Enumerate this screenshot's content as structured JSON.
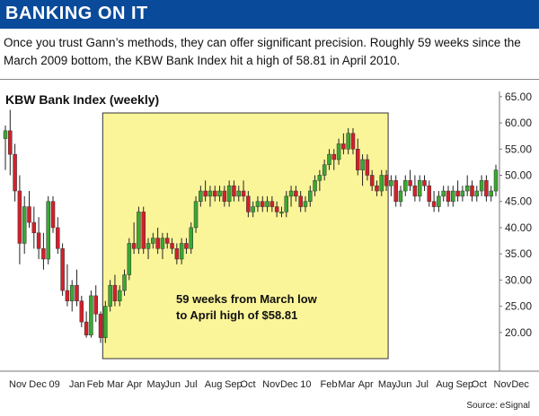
{
  "banner": {
    "title": "BANKING ON IT"
  },
  "intro": "Once you trust Gann’s methods, they can offer significant precision. Roughly 59 weeks since the March 2009 bottom, the KBW Bank Index hit a high of 58.81 in April 2010.",
  "source": "Source: eSignal",
  "colors": {
    "banner": "#0a4a9a",
    "up": "#3aa832",
    "down": "#d2202a",
    "highlight": "#fbf59a"
  },
  "chart_data": {
    "type": "candlestick",
    "title": "KBW Bank Index (weekly)",
    "ylim": [
      15,
      66
    ],
    "y_ticks": [
      "65.00",
      "60.00",
      "55.00",
      "50.00",
      "45.00",
      "40.00",
      "35.00",
      "30.00",
      "25.00",
      "20.00"
    ],
    "y_tick_values": [
      65,
      60,
      55,
      50,
      45,
      40,
      35,
      30,
      25,
      20
    ],
    "x_labels": [
      "Nov",
      "Dec",
      "09",
      "Jan",
      "Feb",
      "Mar",
      "Apr",
      "May",
      "Jun",
      "Jul",
      "Aug",
      "Sep",
      "Oct",
      "Nov",
      "Dec",
      "10",
      "Feb",
      "Mar",
      "Apr",
      "May",
      "Jun",
      "Jul",
      "Aug",
      "Sep",
      "Oct",
      "Nov",
      "Dec"
    ],
    "x_label_positions": [
      0,
      4.5,
      9,
      13.5,
      17.5,
      22,
      26.5,
      31,
      35,
      39.5,
      44,
      48.5,
      52,
      57,
      61,
      65.5,
      70,
      74,
      78.5,
      83,
      87,
      91.5,
      96,
      100.5,
      104,
      109,
      113
    ],
    "annotation": "59 weeks from March low\nto April high of $58.81",
    "highlight_weeks": [
      22,
      81
    ],
    "candles": [
      [
        1,
        57,
        59.5,
        51,
        58.5
      ],
      [
        2,
        58.5,
        62.5,
        50,
        54
      ],
      [
        3,
        54,
        56,
        45,
        47
      ],
      [
        4,
        47,
        50,
        33,
        37
      ],
      [
        5,
        37,
        46,
        35,
        44
      ],
      [
        6,
        44,
        47,
        40,
        41
      ],
      [
        7,
        41,
        44,
        36,
        39
      ],
      [
        8,
        39,
        42,
        34,
        36
      ],
      [
        9,
        36,
        39,
        32,
        34
      ],
      [
        10,
        34,
        46,
        33,
        45
      ],
      [
        11,
        45,
        46,
        39,
        40
      ],
      [
        12,
        40,
        42,
        35,
        36
      ],
      [
        13,
        36,
        37,
        27,
        28
      ],
      [
        14,
        28,
        33,
        25,
        26
      ],
      [
        15,
        26,
        30,
        24,
        29
      ],
      [
        16,
        29,
        32,
        25,
        26
      ],
      [
        17,
        26,
        27,
        21,
        22
      ],
      [
        18,
        22,
        24,
        19,
        19.5
      ],
      [
        19,
        19.5,
        28,
        19,
        27
      ],
      [
        20,
        27,
        29,
        22,
        23.5
      ],
      [
        21,
        23.5,
        24,
        18,
        19
      ],
      [
        22,
        19,
        26,
        18,
        25
      ],
      [
        23,
        25,
        30,
        24,
        29
      ],
      [
        24,
        29,
        31,
        25,
        26
      ],
      [
        25,
        26,
        29,
        25,
        28
      ],
      [
        26,
        28,
        32,
        27,
        31
      ],
      [
        27,
        31,
        38,
        30,
        37
      ],
      [
        28,
        37,
        41,
        35,
        36
      ],
      [
        29,
        36,
        44,
        35,
        43
      ],
      [
        30,
        43,
        44,
        35,
        36
      ],
      [
        31,
        36,
        38,
        34,
        37
      ],
      [
        32,
        37,
        39,
        36,
        38
      ],
      [
        33,
        38,
        40,
        35,
        36
      ],
      [
        34,
        36,
        39,
        34,
        38
      ],
      [
        35,
        38,
        39,
        36,
        37
      ],
      [
        36,
        37,
        38,
        35,
        36
      ],
      [
        37,
        36,
        37,
        33,
        34
      ],
      [
        38,
        34,
        38,
        33,
        37
      ],
      [
        39,
        37,
        38,
        35,
        36
      ],
      [
        40,
        36,
        41,
        35,
        40
      ],
      [
        41,
        40,
        46,
        39,
        45
      ],
      [
        42,
        45,
        48,
        44,
        47
      ],
      [
        43,
        47,
        49,
        45,
        46
      ],
      [
        44,
        46,
        48,
        44,
        47
      ],
      [
        45,
        47,
        48,
        45,
        46
      ],
      [
        46,
        46,
        48,
        45,
        47
      ],
      [
        47,
        47,
        48,
        44,
        45
      ],
      [
        48,
        45,
        49,
        44,
        48
      ],
      [
        49,
        48,
        49,
        45,
        46
      ],
      [
        50,
        46,
        48,
        45,
        47
      ],
      [
        51,
        47,
        49,
        45,
        46
      ],
      [
        52,
        46,
        47,
        42,
        43
      ],
      [
        53,
        43,
        45,
        42,
        44
      ],
      [
        54,
        44,
        46,
        43,
        45
      ],
      [
        55,
        45,
        46,
        43,
        44
      ],
      [
        56,
        44,
        46,
        43,
        45
      ],
      [
        57,
        45,
        46,
        43,
        44
      ],
      [
        58,
        44,
        45,
        42,
        43
      ],
      [
        59,
        43,
        44,
        42,
        43
      ],
      [
        60,
        43,
        47,
        42,
        46
      ],
      [
        61,
        46,
        48,
        44,
        47
      ],
      [
        62,
        47,
        48,
        45,
        46
      ],
      [
        63,
        46,
        47,
        43,
        44
      ],
      [
        64,
        44,
        46,
        43,
        45
      ],
      [
        65,
        45,
        48,
        44,
        47
      ],
      [
        66,
        47,
        50,
        46,
        49
      ],
      [
        67,
        49,
        51,
        47,
        50
      ],
      [
        68,
        50,
        53,
        49,
        52
      ],
      [
        69,
        52,
        55,
        51,
        54
      ],
      [
        70,
        54,
        55,
        51,
        53
      ],
      [
        71,
        53,
        57,
        52,
        56
      ],
      [
        72,
        56,
        58,
        54,
        55
      ],
      [
        73,
        55,
        59,
        54,
        58
      ],
      [
        74,
        58,
        59,
        54,
        55
      ],
      [
        75,
        55,
        57,
        50,
        51
      ],
      [
        76,
        51,
        54,
        48,
        53
      ],
      [
        77,
        53,
        54,
        49,
        50
      ],
      [
        78,
        50,
        51,
        47,
        48
      ],
      [
        79,
        48,
        49,
        46,
        47
      ],
      [
        80,
        47,
        51,
        46,
        50
      ],
      [
        81,
        50,
        51,
        47,
        48
      ],
      [
        82,
        48,
        50,
        46,
        49
      ],
      [
        83,
        49,
        50,
        44,
        45
      ],
      [
        84,
        45,
        48,
        44,
        47
      ],
      [
        85,
        47,
        50,
        46,
        49
      ],
      [
        86,
        49,
        51,
        47,
        48
      ],
      [
        87,
        48,
        50,
        45,
        46
      ],
      [
        88,
        46,
        50,
        45,
        49
      ],
      [
        89,
        49,
        50,
        47,
        48
      ],
      [
        90,
        48,
        49,
        44,
        45
      ],
      [
        91,
        45,
        47,
        43,
        44
      ],
      [
        92,
        44,
        47,
        43,
        46
      ],
      [
        93,
        46,
        48,
        45,
        47
      ],
      [
        94,
        47,
        48,
        44,
        45
      ],
      [
        95,
        45,
        48,
        44,
        47
      ],
      [
        96,
        47,
        49,
        45,
        46
      ],
      [
        97,
        46,
        48,
        45,
        47
      ],
      [
        98,
        47,
        50,
        46,
        48
      ],
      [
        99,
        48,
        49,
        45,
        46
      ],
      [
        100,
        46,
        48,
        45,
        47
      ],
      [
        101,
        47,
        50,
        46,
        49
      ],
      [
        102,
        49,
        50,
        45,
        46
      ],
      [
        103,
        46,
        48,
        45,
        47
      ],
      [
        104,
        47,
        52,
        46,
        51
      ]
    ]
  }
}
